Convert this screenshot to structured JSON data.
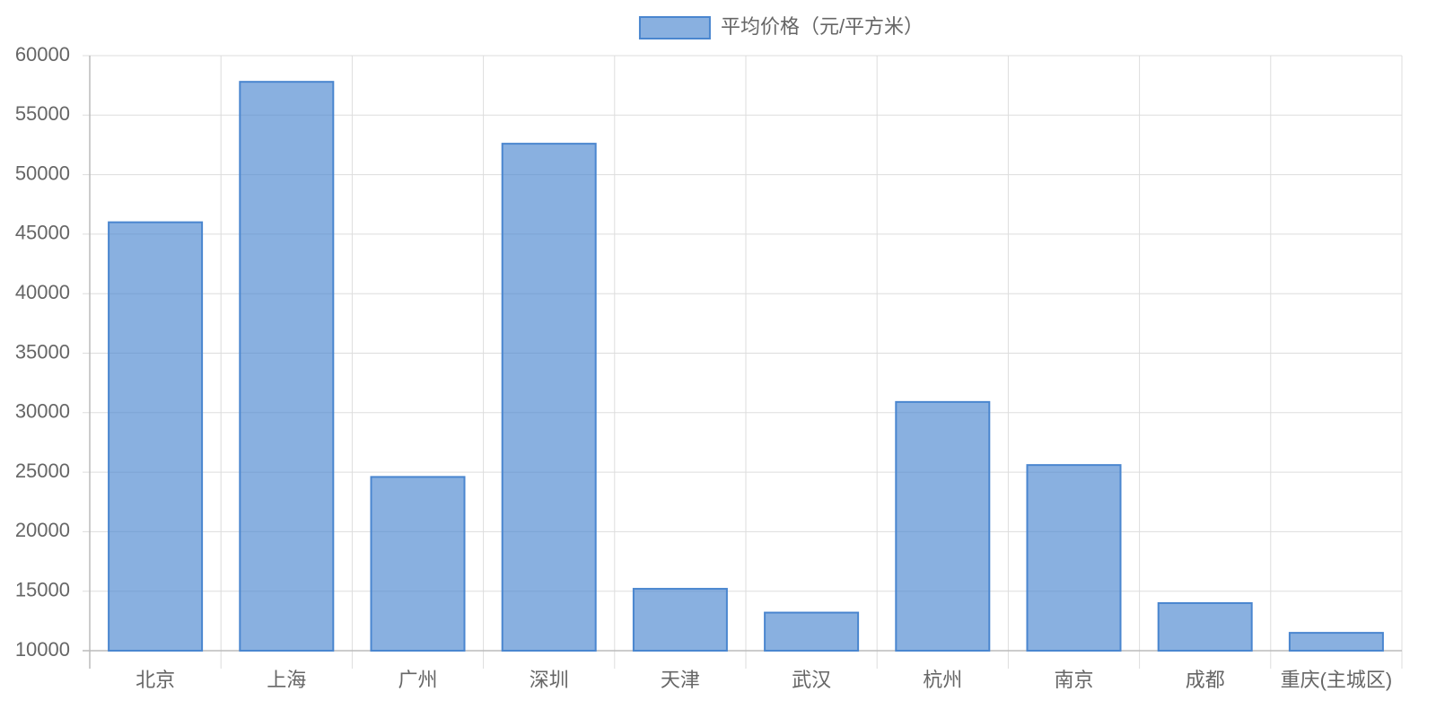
{
  "chart_data": {
    "type": "bar",
    "categories": [
      "北京",
      "上海",
      "广州",
      "深圳",
      "天津",
      "武汉",
      "杭州",
      "南京",
      "成都",
      "重庆(主城区)"
    ],
    "series": [
      {
        "name": "平均价格（元/平方米）",
        "color": "#4a86cf",
        "values": [
          46000,
          57800,
          24600,
          52600,
          15200,
          13200,
          30900,
          25600,
          14000,
          11500
        ]
      }
    ],
    "ylim": [
      10000,
      60000
    ],
    "yticks": [
      10000,
      15000,
      20000,
      25000,
      30000,
      35000,
      40000,
      45000,
      50000,
      55000,
      60000
    ],
    "grid": true,
    "legend": "top"
  }
}
